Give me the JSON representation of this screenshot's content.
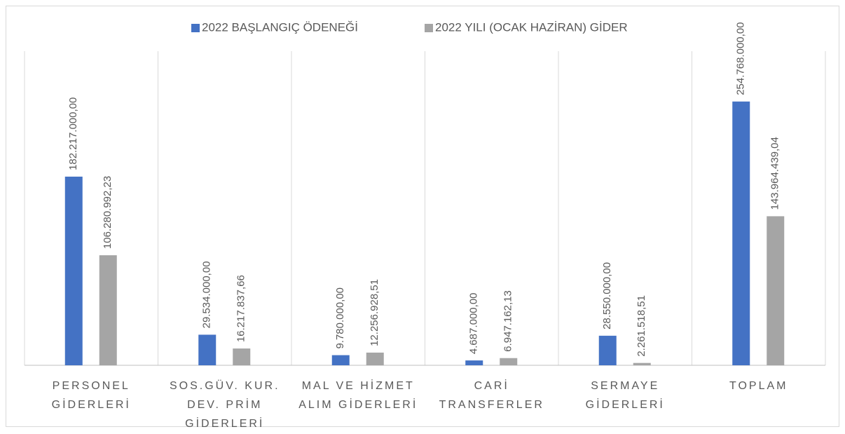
{
  "chart_data": {
    "type": "bar",
    "categories": [
      "PERSONEL GİDERLERİ",
      "SOS.GÜV. KUR. DEV. PRİM GİDERLERİ",
      "MAL VE HİZMET ALIM GİDERLERİ",
      "CARİ TRANSFERLER",
      "SERMAYE GİDERLERİ",
      "TOPLAM"
    ],
    "series": [
      {
        "name": "2022 BAŞLANGIÇ ÖDENEĞİ",
        "color": "#4472c4",
        "values": [
          182217000,
          29534000,
          9780000,
          4687000,
          28550000,
          254768000
        ],
        "value_labels": [
          "182.217.000,00",
          "29.534.000,00",
          "9.780.000,00",
          "4.687.000,00",
          "28.550.000,00",
          "254.768.000,00"
        ]
      },
      {
        "name": "2022 YILI (OCAK HAZİRAN) GİDER",
        "color": "#a5a5a5",
        "values": [
          106280992.23,
          16217837.66,
          12256928.51,
          6947162.13,
          2261518.51,
          143964439.04
        ],
        "value_labels": [
          "106.280.992,23",
          "16.217.837,66",
          "12.256.928,51",
          "6.947.162,13",
          "2.261.518,51",
          "143.964.439,04"
        ]
      }
    ],
    "ylim": [
      0,
      300000000
    ],
    "legend": "top"
  }
}
